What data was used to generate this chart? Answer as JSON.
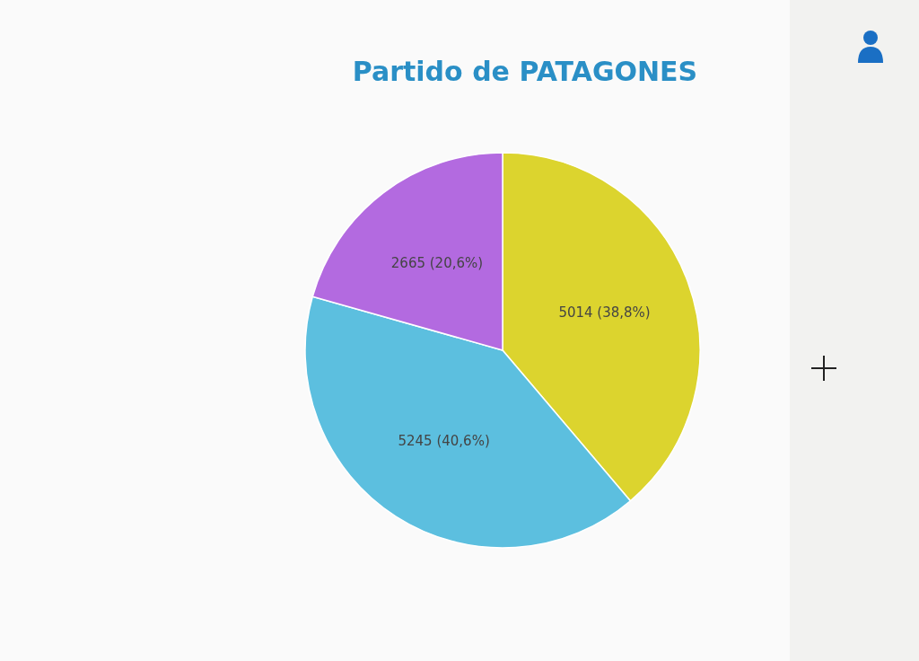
{
  "chart_data": {
    "type": "pie",
    "title": "Partido de PATAGONES",
    "categories": [
      null,
      null,
      null
    ],
    "values": [
      5014,
      5245,
      2665
    ],
    "colors": [
      "#dcd42e",
      "#5cbfdf",
      "#b36ae0"
    ],
    "value_labels": [
      "5014 (38,8%)",
      "5245 (40,6%)",
      "2665 (20,6%)"
    ]
  }
}
